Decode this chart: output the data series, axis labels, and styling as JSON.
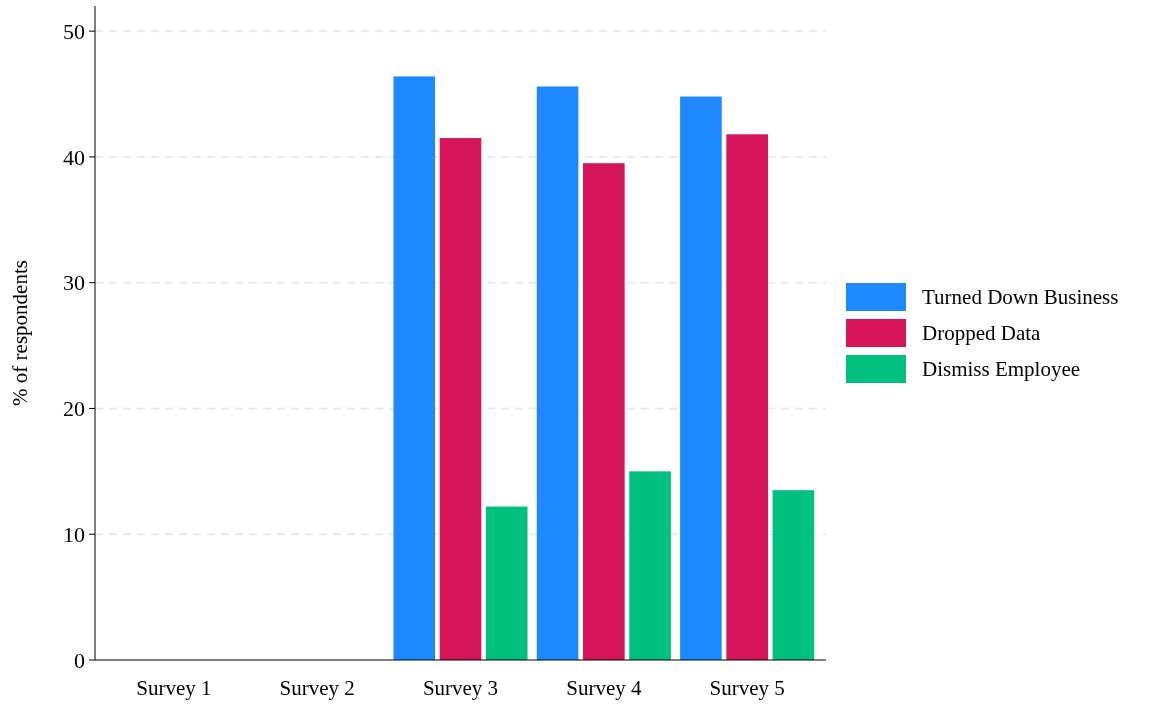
{
  "chart_data": {
    "type": "bar",
    "ylabel": "% of respondents",
    "categories": [
      "Survey 1",
      "Survey 2",
      "Survey 3",
      "Survey 4",
      "Survey 5"
    ],
    "series": [
      {
        "name": "Turned Down Business",
        "color": "#1e88ff",
        "values": [
          null,
          null,
          46.4,
          45.6,
          44.8
        ]
      },
      {
        "name": "Dropped Data",
        "color": "#d6145a",
        "values": [
          null,
          null,
          41.5,
          39.5,
          41.8
        ]
      },
      {
        "name": "Dismiss Employee",
        "color": "#00c07f",
        "values": [
          null,
          null,
          12.2,
          15.0,
          13.5
        ]
      }
    ],
    "ylim": [
      0,
      52
    ],
    "yticks": [
      0,
      10,
      20,
      30,
      40,
      50
    ],
    "grid": "y",
    "legend": "right"
  }
}
